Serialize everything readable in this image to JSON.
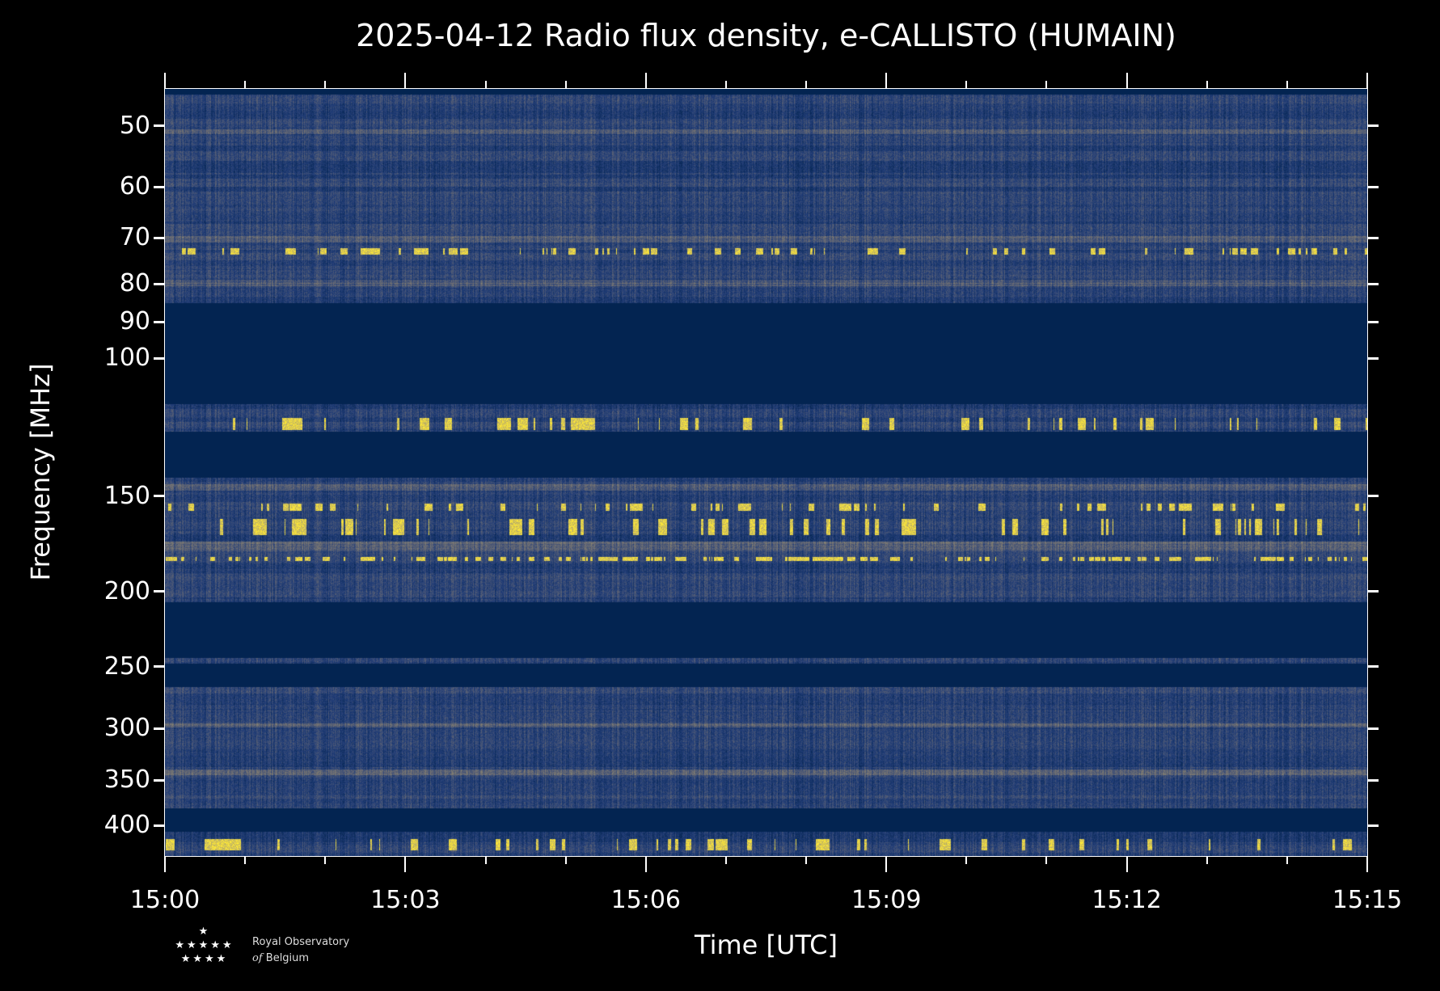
{
  "chart_data": {
    "type": "heatmap",
    "title": "2025-04-12 Radio flux density, e-CALLISTO (HUMAIN)",
    "xlabel": "Time [UTC]",
    "ylabel": "Frequency [MHz]",
    "xlim": [
      "15:00",
      "15:15"
    ],
    "xticks": [
      "15:00",
      "15:03",
      "15:06",
      "15:09",
      "15:12",
      "15:15"
    ],
    "yticks": [
      "50",
      "60",
      "70",
      "80",
      "90",
      "100",
      "150",
      "200",
      "250",
      "300",
      "350",
      "400"
    ],
    "colormap": "cividis",
    "colors": {
      "low": "#00224e",
      "mid": "#6b6d72",
      "high": "#fee838"
    }
  },
  "logo": {
    "line1": "Royal Observatory",
    "line2_italic": "of",
    "line2": "Belgium"
  }
}
